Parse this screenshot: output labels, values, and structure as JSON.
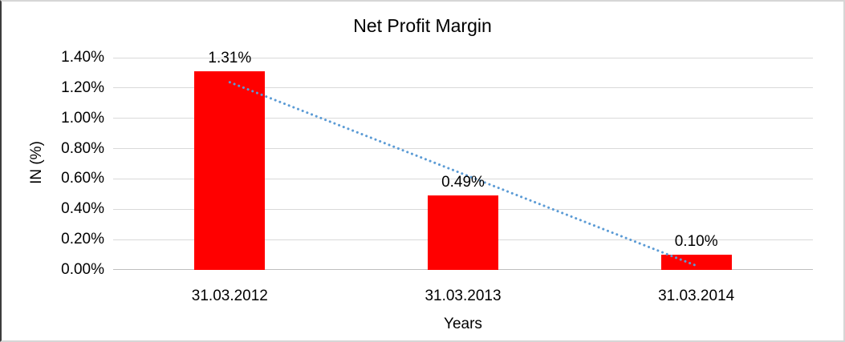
{
  "chart_data": {
    "type": "bar",
    "title": "Net Profit Margin",
    "xlabel": "Years",
    "ylabel": "IN (%)",
    "categories": [
      "31.03.2012",
      "31.03.2013",
      "31.03.2014"
    ],
    "values": [
      1.31,
      0.49,
      0.1
    ],
    "data_labels": [
      "1.31%",
      "0.49%",
      "0.10%"
    ],
    "ylim": [
      0,
      1.4
    ],
    "ytick_step": 0.2,
    "ytick_labels": [
      "0.00%",
      "0.20%",
      "0.40%",
      "0.60%",
      "0.80%",
      "1.00%",
      "1.20%",
      "1.40%"
    ],
    "grid": true,
    "legend": "none",
    "bar_color": "#FF0000",
    "trendline": {
      "type": "linear",
      "style": "dotted",
      "color": "#5B9BD5",
      "start_value": 1.238,
      "end_value": 0.028
    }
  }
}
